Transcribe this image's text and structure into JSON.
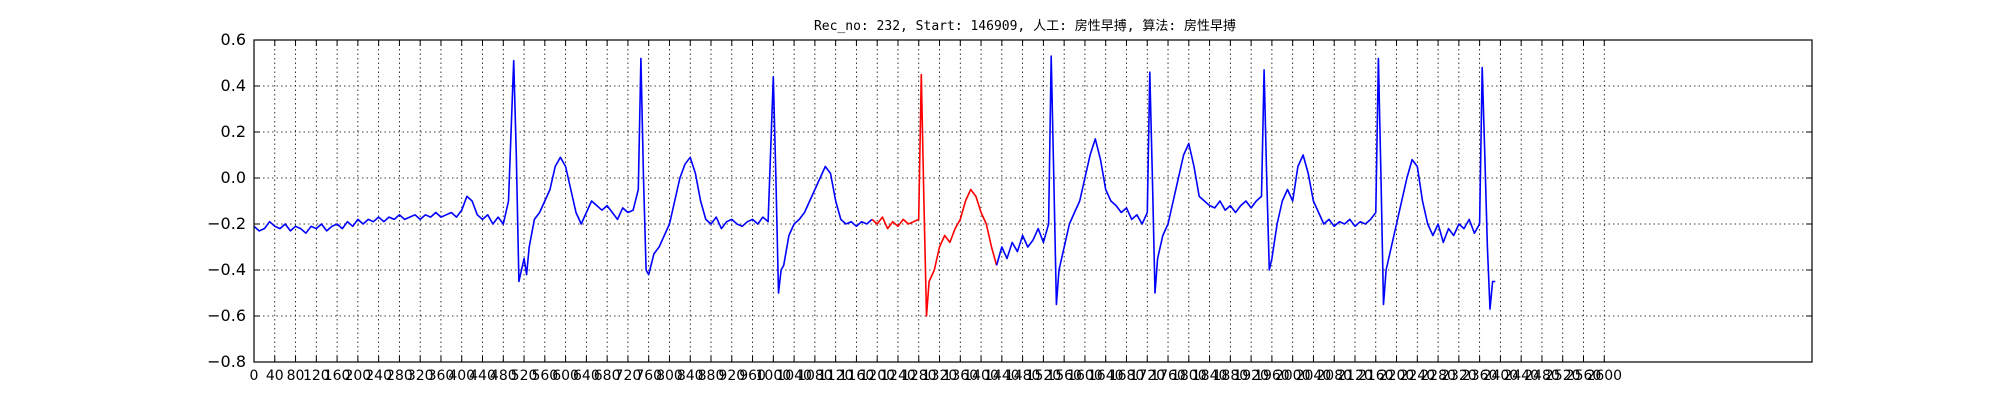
{
  "chart_data": {
    "type": "line",
    "title": "Rec_no: 232, Start: 146909, 人工: 房性早搏, 算法: 房性早搏",
    "xlabel": "",
    "ylabel": "",
    "xlim": [
      0,
      3000
    ],
    "ylim": [
      -0.8,
      0.6
    ],
    "grid": true,
    "yticks": [
      -0.8,
      -0.6,
      -0.4,
      -0.2,
      0.0,
      0.2,
      0.4,
      0.6
    ],
    "ytick_labels": [
      "−0.8",
      "−0.6",
      "−0.4",
      "−0.2",
      "0.0",
      "0.2",
      "0.4",
      "0.6"
    ],
    "xticks": [
      0,
      40,
      80,
      120,
      160,
      200,
      240,
      280,
      320,
      360,
      400,
      440,
      480,
      520,
      560,
      600,
      640,
      680,
      720,
      760,
      800,
      840,
      880,
      920,
      960,
      1000,
      1040,
      1080,
      1120,
      1160,
      1200,
      1240,
      1280,
      1320,
      1360,
      1400,
      1440,
      1480,
      1520,
      1560,
      1600,
      1640,
      1680,
      1720,
      1760,
      1800,
      1840,
      1880,
      1920,
      1960,
      2000,
      2040,
      2080,
      2120,
      2160,
      2200,
      2240,
      2280,
      2320,
      2360,
      2400,
      2440,
      2480,
      2520,
      2560,
      2600
    ],
    "xtick_labels": [
      "0",
      "40",
      "80",
      "120",
      "160",
      "200",
      "240",
      "280",
      "320",
      "360",
      "400",
      "440",
      "480",
      "520",
      "560",
      "600",
      "640",
      "680",
      "720",
      "760",
      "800",
      "840",
      "880",
      "920",
      "960",
      "1000",
      "1040",
      "1080",
      "1120",
      "1160",
      "1200",
      "1240",
      "1280",
      "1320",
      "1360",
      "1400",
      "1440",
      "1480",
      "1520",
      "1560",
      "1600",
      "1640",
      "1680",
      "1720",
      "1760",
      "1800",
      "1840",
      "1880",
      "1920",
      "1960",
      "2000",
      "2040",
      "2080",
      "2120",
      "2160",
      "2200",
      "2240",
      "2280",
      "2320",
      "2360",
      "2400",
      "2440",
      "2480",
      "2520",
      "2560",
      "2600"
    ],
    "series": [
      {
        "color": "#0000ff",
        "x": [
          0,
          10,
          20,
          30,
          40,
          50,
          60,
          70,
          80,
          90,
          100,
          110,
          120,
          130,
          140,
          150,
          160,
          170,
          180,
          190,
          200,
          210,
          220,
          230,
          240,
          250,
          260,
          270,
          280,
          290,
          300,
          310,
          320,
          330,
          340,
          350,
          360,
          370,
          380,
          390,
          400,
          410,
          420,
          430,
          440,
          450,
          460,
          470,
          480,
          490,
          500,
          505,
          510,
          515,
          520,
          525,
          530,
          540,
          550,
          560,
          570,
          580,
          590,
          600,
          610,
          620,
          630,
          640,
          650,
          660,
          670,
          680,
          690,
          700,
          710,
          720,
          730,
          740,
          745,
          750,
          755,
          760,
          770,
          780,
          790,
          800,
          810,
          820,
          830,
          840,
          850,
          860,
          870,
          880,
          890,
          900,
          910,
          920,
          930,
          940,
          950,
          960,
          970,
          980,
          990,
          1000,
          1005,
          1010,
          1015,
          1020,
          1030,
          1040,
          1050,
          1060,
          1070,
          1080,
          1090,
          1100,
          1110,
          1120,
          1130,
          1140,
          1150,
          1160,
          1170,
          1180,
          1190
        ],
        "y": [
          -0.21,
          -0.23,
          -0.22,
          -0.19,
          -0.21,
          -0.22,
          -0.2,
          -0.23,
          -0.21,
          -0.22,
          -0.24,
          -0.21,
          -0.22,
          -0.2,
          -0.23,
          -0.21,
          -0.2,
          -0.22,
          -0.19,
          -0.21,
          -0.18,
          -0.2,
          -0.18,
          -0.19,
          -0.17,
          -0.19,
          -0.17,
          -0.18,
          -0.16,
          -0.18,
          -0.17,
          -0.16,
          -0.18,
          -0.16,
          -0.17,
          -0.15,
          -0.17,
          -0.16,
          -0.15,
          -0.17,
          -0.14,
          -0.08,
          -0.1,
          -0.16,
          -0.18,
          -0.16,
          -0.2,
          -0.17,
          -0.2,
          -0.1,
          0.51,
          0.1,
          -0.45,
          -0.4,
          -0.35,
          -0.42,
          -0.3,
          -0.18,
          -0.15,
          -0.1,
          -0.05,
          0.05,
          0.09,
          0.05,
          -0.05,
          -0.15,
          -0.2,
          -0.15,
          -0.1,
          -0.12,
          -0.14,
          -0.12,
          -0.15,
          -0.18,
          -0.13,
          -0.15,
          -0.14,
          -0.05,
          0.52,
          0.0,
          -0.4,
          -0.42,
          -0.33,
          -0.3,
          -0.25,
          -0.2,
          -0.1,
          0.0,
          0.06,
          0.09,
          0.02,
          -0.1,
          -0.18,
          -0.2,
          -0.17,
          -0.22,
          -0.19,
          -0.18,
          -0.2,
          -0.21,
          -0.19,
          -0.18,
          -0.2,
          -0.17,
          -0.19,
          0.44,
          0.0,
          -0.5,
          -0.4,
          -0.38,
          -0.25,
          -0.2,
          -0.18,
          -0.15,
          -0.1,
          -0.05,
          0.0,
          0.05,
          0.02,
          -0.1,
          -0.18,
          -0.2,
          -0.19,
          -0.21,
          -0.19,
          -0.2,
          -0.18
        ]
      },
      {
        "color": "#ff0000",
        "x": [
          1190,
          1200,
          1210,
          1220,
          1230,
          1240,
          1250,
          1260,
          1270,
          1280,
          1285,
          1290,
          1295,
          1300,
          1310,
          1320,
          1330,
          1340,
          1350,
          1360,
          1370,
          1380,
          1390,
          1400,
          1410,
          1420,
          1430
        ],
        "y": [
          -0.18,
          -0.2,
          -0.17,
          -0.22,
          -0.19,
          -0.21,
          -0.18,
          -0.2,
          -0.19,
          -0.18,
          0.45,
          -0.1,
          -0.6,
          -0.45,
          -0.4,
          -0.3,
          -0.25,
          -0.28,
          -0.22,
          -0.18,
          -0.1,
          -0.05,
          -0.08,
          -0.15,
          -0.2,
          -0.3,
          -0.38
        ]
      },
      {
        "color": "#0000ff",
        "x": [
          1430,
          1440,
          1450,
          1460,
          1470,
          1480,
          1490,
          1500,
          1510,
          1520,
          1530,
          1535,
          1540,
          1545,
          1550,
          1560,
          1570,
          1580,
          1590,
          1600,
          1610,
          1620,
          1630,
          1640,
          1650,
          1660,
          1670,
          1680,
          1690,
          1700,
          1710,
          1720,
          1725,
          1730,
          1735,
          1740,
          1750,
          1760,
          1770,
          1780,
          1790,
          1800,
          1810,
          1820,
          1830,
          1840,
          1850,
          1860,
          1870,
          1880,
          1890,
          1900,
          1910,
          1920,
          1930,
          1940,
          1945,
          1950,
          1955,
          1960,
          1970,
          1980,
          1990,
          2000,
          2010,
          2020,
          2030,
          2040,
          2050,
          2060,
          2070,
          2080,
          2090,
          2100,
          2110,
          2120,
          2130,
          2140,
          2150,
          2160,
          2165,
          2170,
          2175,
          2180,
          2190,
          2200,
          2210,
          2220,
          2230,
          2240,
          2250,
          2260,
          2270,
          2280,
          2290,
          2300,
          2310,
          2320,
          2330,
          2340,
          2350,
          2360,
          2365,
          2370,
          2375,
          2380,
          2385,
          2390
        ],
        "y": [
          -0.38,
          -0.3,
          -0.35,
          -0.28,
          -0.32,
          -0.25,
          -0.3,
          -0.27,
          -0.22,
          -0.28,
          -0.2,
          0.53,
          0.0,
          -0.55,
          -0.4,
          -0.3,
          -0.2,
          -0.15,
          -0.1,
          0.0,
          0.1,
          0.17,
          0.08,
          -0.05,
          -0.1,
          -0.12,
          -0.15,
          -0.13,
          -0.18,
          -0.16,
          -0.2,
          -0.15,
          0.46,
          0.0,
          -0.5,
          -0.35,
          -0.25,
          -0.2,
          -0.1,
          0.0,
          0.1,
          0.15,
          0.05,
          -0.08,
          -0.1,
          -0.12,
          -0.13,
          -0.1,
          -0.14,
          -0.12,
          -0.15,
          -0.12,
          -0.1,
          -0.13,
          -0.1,
          -0.08,
          0.47,
          0.0,
          -0.4,
          -0.35,
          -0.2,
          -0.1,
          -0.05,
          -0.1,
          0.05,
          0.1,
          0.02,
          -0.1,
          -0.15,
          -0.2,
          -0.18,
          -0.21,
          -0.19,
          -0.2,
          -0.18,
          -0.21,
          -0.19,
          -0.2,
          -0.18,
          -0.15,
          0.52,
          0.0,
          -0.55,
          -0.4,
          -0.3,
          -0.2,
          -0.1,
          0.0,
          0.08,
          0.05,
          -0.1,
          -0.2,
          -0.25,
          -0.2,
          -0.28,
          -0.22,
          -0.25,
          -0.2,
          -0.22,
          -0.18,
          -0.24,
          -0.2,
          0.48,
          0.1,
          -0.3,
          -0.57,
          -0.45,
          -0.45
        ]
      }
    ]
  }
}
